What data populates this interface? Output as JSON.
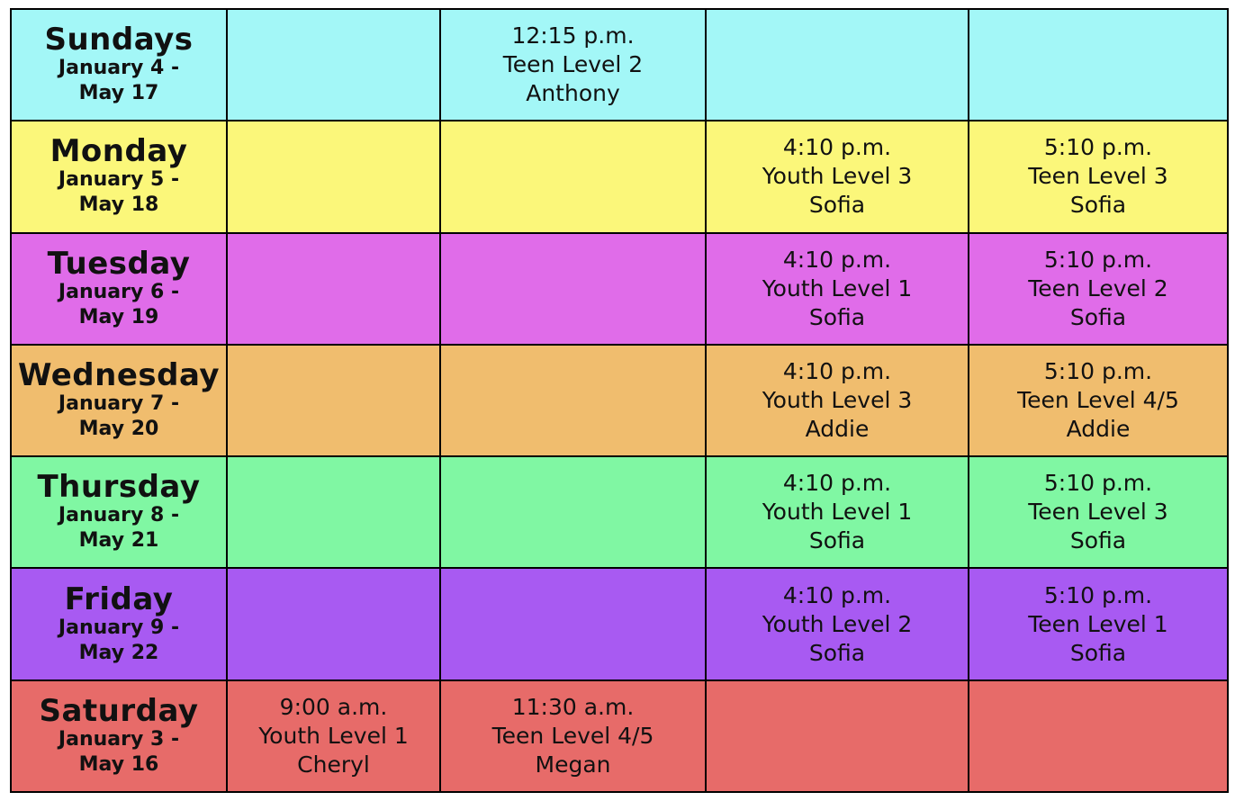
{
  "colors": {
    "sunday": "#a3f7f7",
    "monday": "#fbf77a",
    "tuesday": "#e06ce9",
    "wednesday": "#f0bd6e",
    "thursday": "#80f7a3",
    "friday": "#a85af2",
    "saturday": "#e76b69"
  },
  "rows": [
    {
      "day": "Sundays",
      "range1": "January 4 -",
      "range2": "May 17",
      "cells": [
        {
          "time": "",
          "class": "",
          "teacher": ""
        },
        {
          "time": "12:15 p.m.",
          "class": "Teen Level 2",
          "teacher": "Anthony"
        },
        {
          "time": "",
          "class": "",
          "teacher": ""
        },
        {
          "time": "",
          "class": "",
          "teacher": ""
        }
      ]
    },
    {
      "day": "Monday",
      "range1": "January 5 -",
      "range2": "May 18",
      "cells": [
        {
          "time": "",
          "class": "",
          "teacher": ""
        },
        {
          "time": "",
          "class": "",
          "teacher": ""
        },
        {
          "time": "4:10 p.m.",
          "class": "Youth Level 3",
          "teacher": "Sofia"
        },
        {
          "time": "5:10 p.m.",
          "class": "Teen Level 3",
          "teacher": "Sofia"
        }
      ]
    },
    {
      "day": "Tuesday",
      "range1": "January 6 -",
      "range2": "May 19",
      "cells": [
        {
          "time": "",
          "class": "",
          "teacher": ""
        },
        {
          "time": "",
          "class": "",
          "teacher": ""
        },
        {
          "time": "4:10 p.m.",
          "class": "Youth Level 1",
          "teacher": "Sofia"
        },
        {
          "time": "5:10 p.m.",
          "class": "Teen Level 2",
          "teacher": "Sofia"
        }
      ]
    },
    {
      "day": "Wednesday",
      "range1": "January 7 -",
      "range2": "May 20",
      "cells": [
        {
          "time": "",
          "class": "",
          "teacher": ""
        },
        {
          "time": "",
          "class": "",
          "teacher": ""
        },
        {
          "time": "4:10 p.m.",
          "class": "Youth Level 3",
          "teacher": "Addie"
        },
        {
          "time": "5:10 p.m.",
          "class": "Teen Level 4/5",
          "teacher": "Addie"
        }
      ]
    },
    {
      "day": "Thursday",
      "range1": "January 8 -",
      "range2": "May 21",
      "cells": [
        {
          "time": "",
          "class": "",
          "teacher": ""
        },
        {
          "time": "",
          "class": "",
          "teacher": ""
        },
        {
          "time": "4:10 p.m.",
          "class": "Youth Level 1",
          "teacher": "Sofia"
        },
        {
          "time": "5:10 p.m.",
          "class": "Teen Level 3",
          "teacher": "Sofia"
        }
      ]
    },
    {
      "day": "Friday",
      "range1": "January 9 -",
      "range2": "May 22",
      "cells": [
        {
          "time": "",
          "class": "",
          "teacher": ""
        },
        {
          "time": "",
          "class": "",
          "teacher": ""
        },
        {
          "time": "4:10 p.m.",
          "class": "Youth Level 2",
          "teacher": "Sofia"
        },
        {
          "time": "5:10 p.m.",
          "class": "Teen Level 1",
          "teacher": "Sofia"
        }
      ]
    },
    {
      "day": "Saturday",
      "range1": "January 3 -",
      "range2": "May 16",
      "cells": [
        {
          "time": "9:00 a.m.",
          "class": "Youth Level 1",
          "teacher": "Cheryl"
        },
        {
          "time": "11:30 a.m.",
          "class": "Teen Level 4/5",
          "teacher": "Megan"
        },
        {
          "time": "",
          "class": "",
          "teacher": ""
        },
        {
          "time": "",
          "class": "",
          "teacher": ""
        }
      ]
    }
  ]
}
